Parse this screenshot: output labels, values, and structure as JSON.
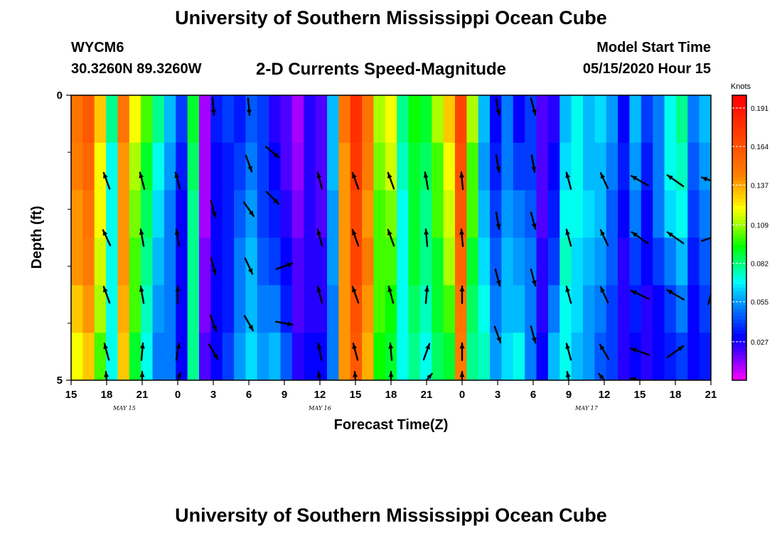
{
  "header": {
    "title": "University of Southern Mississippi Ocean Cube",
    "station_id": "WYCM6",
    "station_location": "30.3260N 89.3260W",
    "plot_title": "2-D Currents Speed-Magnitude",
    "model_start_label": "Model Start Time",
    "model_start_value": "05/15/2020 Hour 15"
  },
  "footer": {
    "title": "University of Southern Mississippi Ocean Cube"
  },
  "chart_data": {
    "type": "heatmap",
    "xlabel": "Forecast Time(Z)",
    "ylabel": "Depth (ft)",
    "x_range_hours": [
      0,
      54
    ],
    "x_tick_labels": [
      "15",
      "18",
      "21",
      "0",
      "3",
      "6",
      "9",
      "12",
      "15",
      "18",
      "21",
      "0",
      "3",
      "6",
      "9",
      "12",
      "15",
      "18",
      "21"
    ],
    "x_tick_hours": [
      0,
      3,
      6,
      9,
      12,
      15,
      18,
      21,
      24,
      27,
      30,
      33,
      36,
      39,
      42,
      45,
      48,
      51,
      54
    ],
    "date_labels": [
      {
        "text": "MAY 15",
        "hour": 4.5
      },
      {
        "text": "MAY 16",
        "hour": 21
      },
      {
        "text": "MAY 17",
        "hour": 43.5
      }
    ],
    "y_range": [
      0,
      5
    ],
    "y_tick_labels": [
      {
        "value": 0,
        "text": "0"
      },
      {
        "value": 5,
        "text": "5"
      }
    ],
    "y_minor_ticks": [
      1,
      2,
      3,
      4
    ],
    "colorbar": {
      "unit": "Knots",
      "range": [
        0,
        0.2
      ],
      "ticks": [
        0.191,
        0.164,
        0.137,
        0.109,
        0.082,
        0.055,
        0.027
      ],
      "tick_labels": [
        "0.191",
        "0.164",
        "0.137",
        "0.109",
        "0.082",
        "0.055",
        "0.027"
      ]
    },
    "grid": false,
    "column_speeds": [
      [
        0.15,
        0.145,
        0.14,
        0.14,
        0.13,
        0.12
      ],
      [
        0.16,
        0.155,
        0.15,
        0.145,
        0.14,
        0.13
      ],
      [
        0.13,
        0.12,
        0.12,
        0.115,
        0.11,
        0.1
      ],
      [
        0.08,
        0.07,
        0.07,
        0.07,
        0.07,
        0.07
      ],
      [
        0.15,
        0.14,
        0.14,
        0.14,
        0.135,
        0.13
      ],
      [
        0.12,
        0.11,
        0.105,
        0.1,
        0.1,
        0.09
      ],
      [
        0.1,
        0.09,
        0.085,
        0.08,
        0.075,
        0.07
      ],
      [
        0.08,
        0.07,
        0.065,
        0.06,
        0.055,
        0.05
      ],
      [
        0.06,
        0.055,
        0.05,
        0.05,
        0.05,
        0.05
      ],
      [
        0.04,
        0.035,
        0.03,
        0.03,
        0.03,
        0.03
      ],
      [
        0.09,
        0.085,
        0.08,
        0.08,
        0.08,
        0.08
      ],
      [
        0.01,
        0.01,
        0.01,
        0.015,
        0.015,
        0.02
      ],
      [
        0.035,
        0.03,
        0.03,
        0.03,
        0.03,
        0.03
      ],
      [
        0.04,
        0.035,
        0.035,
        0.035,
        0.035,
        0.04
      ],
      [
        0.035,
        0.04,
        0.045,
        0.05,
        0.05,
        0.055
      ],
      [
        0.045,
        0.05,
        0.055,
        0.06,
        0.06,
        0.065
      ],
      [
        0.04,
        0.04,
        0.04,
        0.045,
        0.05,
        0.055
      ],
      [
        0.025,
        0.03,
        0.035,
        0.04,
        0.05,
        0.06
      ],
      [
        0.02,
        0.02,
        0.025,
        0.03,
        0.035,
        0.045
      ],
      [
        0.01,
        0.012,
        0.015,
        0.02,
        0.02,
        0.025
      ],
      [
        0.025,
        0.025,
        0.025,
        0.025,
        0.025,
        0.03
      ],
      [
        0.02,
        0.02,
        0.02,
        0.025,
        0.025,
        0.03
      ],
      [
        0.06,
        0.06,
        0.055,
        0.055,
        0.05,
        0.05
      ],
      [
        0.15,
        0.14,
        0.14,
        0.14,
        0.14,
        0.14
      ],
      [
        0.18,
        0.175,
        0.17,
        0.17,
        0.165,
        0.16
      ],
      [
        0.15,
        0.145,
        0.14,
        0.145,
        0.14,
        0.135
      ],
      [
        0.11,
        0.105,
        0.1,
        0.1,
        0.1,
        0.095
      ],
      [
        0.12,
        0.115,
        0.105,
        0.1,
        0.095,
        0.09
      ],
      [
        0.08,
        0.075,
        0.07,
        0.07,
        0.07,
        0.07
      ],
      [
        0.095,
        0.09,
        0.09,
        0.09,
        0.085,
        0.08
      ],
      [
        0.09,
        0.085,
        0.08,
        0.08,
        0.075,
        0.07
      ],
      [
        0.11,
        0.1,
        0.1,
        0.09,
        0.09,
        0.085
      ],
      [
        0.13,
        0.12,
        0.115,
        0.11,
        0.1,
        0.09
      ],
      [
        0.17,
        0.165,
        0.16,
        0.155,
        0.15,
        0.145
      ],
      [
        0.11,
        0.1,
        0.1,
        0.09,
        0.085,
        0.08
      ],
      [
        0.06,
        0.055,
        0.06,
        0.065,
        0.07,
        0.075
      ],
      [
        0.03,
        0.035,
        0.04,
        0.045,
        0.05,
        0.055
      ],
      [
        0.05,
        0.05,
        0.055,
        0.06,
        0.06,
        0.065
      ],
      [
        0.03,
        0.04,
        0.05,
        0.055,
        0.06,
        0.07
      ],
      [
        0.04,
        0.04,
        0.045,
        0.05,
        0.05,
        0.05
      ],
      [
        0.02,
        0.02,
        0.02,
        0.025,
        0.025,
        0.03
      ],
      [
        0.025,
        0.03,
        0.035,
        0.04,
        0.05,
        0.06
      ],
      [
        0.06,
        0.065,
        0.07,
        0.075,
        0.07,
        0.07
      ],
      [
        0.07,
        0.07,
        0.07,
        0.065,
        0.065,
        0.06
      ],
      [
        0.06,
        0.06,
        0.065,
        0.06,
        0.055,
        0.055
      ],
      [
        0.065,
        0.06,
        0.06,
        0.055,
        0.05,
        0.045
      ],
      [
        0.055,
        0.05,
        0.045,
        0.045,
        0.04,
        0.04
      ],
      [
        0.03,
        0.035,
        0.03,
        0.025,
        0.025,
        0.025
      ],
      [
        0.06,
        0.055,
        0.05,
        0.04,
        0.035,
        0.03
      ],
      [
        0.04,
        0.035,
        0.03,
        0.03,
        0.025,
        0.025
      ],
      [
        0.05,
        0.05,
        0.05,
        0.04,
        0.03,
        0.03
      ],
      [
        0.07,
        0.07,
        0.065,
        0.05,
        0.04,
        0.035
      ],
      [
        0.08,
        0.075,
        0.07,
        0.06,
        0.05,
        0.04
      ],
      [
        0.05,
        0.045,
        0.04,
        0.035,
        0.03,
        0.03
      ],
      [
        0.06,
        0.055,
        0.05,
        0.045,
        0.04,
        0.035
      ]
    ],
    "arrows_note_units": "direction in compass degrees the current flows toward; depth levels 0.5,1.5,2.5,3.5,4.5 ft",
    "arrows": [
      {
        "hour": 3,
        "depth": 1.5,
        "dir": 340,
        "len": 0.7
      },
      {
        "hour": 3,
        "depth": 2.5,
        "dir": 335,
        "len": 0.7
      },
      {
        "hour": 3,
        "depth": 3.5,
        "dir": 340,
        "len": 0.7
      },
      {
        "hour": 3,
        "depth": 4.5,
        "dir": 345,
        "len": 0.7
      },
      {
        "hour": 3,
        "depth": 5.0,
        "dir": 355,
        "len": 0.7
      },
      {
        "hour": 6,
        "depth": 1.5,
        "dir": 345,
        "len": 0.7
      },
      {
        "hour": 6,
        "depth": 2.5,
        "dir": 350,
        "len": 0.7
      },
      {
        "hour": 6,
        "depth": 3.5,
        "dir": 350,
        "len": 0.7
      },
      {
        "hour": 6,
        "depth": 4.5,
        "dir": 5,
        "len": 0.7
      },
      {
        "hour": 6,
        "depth": 5.0,
        "dir": 0,
        "len": 0.7
      },
      {
        "hour": 9,
        "depth": 1.5,
        "dir": 345,
        "len": 0.7
      },
      {
        "hour": 9,
        "depth": 2.5,
        "dir": 350,
        "len": 0.7
      },
      {
        "hour": 9,
        "depth": 3.5,
        "dir": 0,
        "len": 0.7
      },
      {
        "hour": 9,
        "depth": 4.5,
        "dir": 10,
        "len": 0.7
      },
      {
        "hour": 9,
        "depth": 5.0,
        "dir": 20,
        "len": 0.7
      },
      {
        "hour": 12,
        "depth": 0.2,
        "dir": 175,
        "len": 0.7
      },
      {
        "hour": 12,
        "depth": 2.0,
        "dir": 165,
        "len": 0.7
      },
      {
        "hour": 12,
        "depth": 3.0,
        "dir": 165,
        "len": 0.7
      },
      {
        "hour": 12,
        "depth": 4.0,
        "dir": 160,
        "len": 0.7
      },
      {
        "hour": 12,
        "depth": 4.5,
        "dir": 150,
        "len": 0.7
      },
      {
        "hour": 15,
        "depth": 0.2,
        "dir": 175,
        "len": 0.7
      },
      {
        "hour": 15,
        "depth": 1.2,
        "dir": 160,
        "len": 0.7
      },
      {
        "hour": 15,
        "depth": 2.0,
        "dir": 145,
        "len": 0.7
      },
      {
        "hour": 15,
        "depth": 3.0,
        "dir": 155,
        "len": 0.7
      },
      {
        "hour": 15,
        "depth": 4.0,
        "dir": 150,
        "len": 0.7
      },
      {
        "hour": 17,
        "depth": 1.0,
        "dir": 130,
        "len": 0.7
      },
      {
        "hour": 17,
        "depth": 1.8,
        "dir": 135,
        "len": 0.7
      },
      {
        "hour": 18,
        "depth": 3.0,
        "dir": 70,
        "len": 0.7
      },
      {
        "hour": 18,
        "depth": 4.0,
        "dir": 100,
        "len": 0.7
      },
      {
        "hour": 21,
        "depth": 1.5,
        "dir": 345,
        "len": 0.7
      },
      {
        "hour": 21,
        "depth": 2.5,
        "dir": 345,
        "len": 0.7
      },
      {
        "hour": 21,
        "depth": 3.5,
        "dir": 345,
        "len": 0.7
      },
      {
        "hour": 21,
        "depth": 4.5,
        "dir": 350,
        "len": 0.7
      },
      {
        "hour": 21,
        "depth": 5.0,
        "dir": 350,
        "len": 0.7
      },
      {
        "hour": 24,
        "depth": 1.5,
        "dir": 340,
        "len": 0.7
      },
      {
        "hour": 24,
        "depth": 2.5,
        "dir": 340,
        "len": 0.7
      },
      {
        "hour": 24,
        "depth": 3.5,
        "dir": 340,
        "len": 0.7
      },
      {
        "hour": 24,
        "depth": 4.5,
        "dir": 345,
        "len": 0.7
      },
      {
        "hour": 24,
        "depth": 5.0,
        "dir": 355,
        "len": 0.7
      },
      {
        "hour": 27,
        "depth": 1.5,
        "dir": 340,
        "len": 0.7
      },
      {
        "hour": 27,
        "depth": 2.5,
        "dir": 340,
        "len": 0.7
      },
      {
        "hour": 27,
        "depth": 3.5,
        "dir": 345,
        "len": 0.7
      },
      {
        "hour": 27,
        "depth": 4.5,
        "dir": 355,
        "len": 0.7
      },
      {
        "hour": 27,
        "depth": 5.0,
        "dir": 0,
        "len": 0.7
      },
      {
        "hour": 30,
        "depth": 1.5,
        "dir": 350,
        "len": 0.7
      },
      {
        "hour": 30,
        "depth": 2.5,
        "dir": 355,
        "len": 0.7
      },
      {
        "hour": 30,
        "depth": 3.5,
        "dir": 5,
        "len": 0.7
      },
      {
        "hour": 30,
        "depth": 4.5,
        "dir": 20,
        "len": 0.7
      },
      {
        "hour": 30,
        "depth": 5.0,
        "dir": 40,
        "len": 0.7
      },
      {
        "hour": 33,
        "depth": 1.5,
        "dir": 355,
        "len": 0.7
      },
      {
        "hour": 33,
        "depth": 2.5,
        "dir": 355,
        "len": 0.7
      },
      {
        "hour": 33,
        "depth": 3.5,
        "dir": 0,
        "len": 0.7
      },
      {
        "hour": 33,
        "depth": 4.5,
        "dir": 0,
        "len": 0.7
      },
      {
        "hour": 33,
        "depth": 5.0,
        "dir": 0,
        "len": 0.7
      },
      {
        "hour": 36,
        "depth": 0.2,
        "dir": 170,
        "len": 0.7
      },
      {
        "hour": 36,
        "depth": 1.2,
        "dir": 170,
        "len": 0.7
      },
      {
        "hour": 36,
        "depth": 2.2,
        "dir": 170,
        "len": 0.7
      },
      {
        "hour": 36,
        "depth": 3.2,
        "dir": 165,
        "len": 0.7
      },
      {
        "hour": 36,
        "depth": 4.2,
        "dir": 160,
        "len": 0.7
      },
      {
        "hour": 39,
        "depth": 0.2,
        "dir": 165,
        "len": 0.7
      },
      {
        "hour": 39,
        "depth": 1.2,
        "dir": 170,
        "len": 0.7
      },
      {
        "hour": 39,
        "depth": 2.2,
        "dir": 165,
        "len": 0.7
      },
      {
        "hour": 39,
        "depth": 3.2,
        "dir": 165,
        "len": 0.7
      },
      {
        "hour": 39,
        "depth": 4.2,
        "dir": 165,
        "len": 0.7
      },
      {
        "hour": 42,
        "depth": 1.5,
        "dir": 345,
        "len": 0.7
      },
      {
        "hour": 42,
        "depth": 2.5,
        "dir": 345,
        "len": 0.7
      },
      {
        "hour": 42,
        "depth": 3.5,
        "dir": 345,
        "len": 0.7
      },
      {
        "hour": 42,
        "depth": 4.5,
        "dir": 345,
        "len": 0.7
      },
      {
        "hour": 42,
        "depth": 5.0,
        "dir": 350,
        "len": 0.7
      },
      {
        "hour": 45,
        "depth": 1.5,
        "dir": 335,
        "len": 0.7
      },
      {
        "hour": 45,
        "depth": 2.5,
        "dir": 335,
        "len": 0.7
      },
      {
        "hour": 45,
        "depth": 3.5,
        "dir": 335,
        "len": 0.7
      },
      {
        "hour": 45,
        "depth": 4.5,
        "dir": 330,
        "len": 0.7
      },
      {
        "hour": 45,
        "depth": 5.0,
        "dir": 320,
        "len": 0.7
      },
      {
        "hour": 48,
        "depth": 1.5,
        "dir": 300,
        "len": 0.8
      },
      {
        "hour": 48,
        "depth": 2.5,
        "dir": 305,
        "len": 0.8
      },
      {
        "hour": 48,
        "depth": 3.5,
        "dir": 295,
        "len": 0.8
      },
      {
        "hour": 48,
        "depth": 4.5,
        "dir": 290,
        "len": 0.8
      },
      {
        "hour": 48,
        "depth": 5.0,
        "dir": 280,
        "len": 0.8
      },
      {
        "hour": 51,
        "depth": 1.5,
        "dir": 305,
        "len": 0.8
      },
      {
        "hour": 51,
        "depth": 2.5,
        "dir": 305,
        "len": 0.8
      },
      {
        "hour": 51,
        "depth": 3.5,
        "dir": 300,
        "len": 0.8
      },
      {
        "hour": 51,
        "depth": 4.5,
        "dir": 55,
        "len": 0.8
      },
      {
        "hour": 54,
        "depth": 1.5,
        "dir": 290,
        "len": 0.8
      },
      {
        "hour": 54,
        "depth": 2.5,
        "dir": 70,
        "len": 0.8
      },
      {
        "hour": 54,
        "depth": 3.5,
        "dir": 15,
        "len": 0.8
      }
    ]
  }
}
